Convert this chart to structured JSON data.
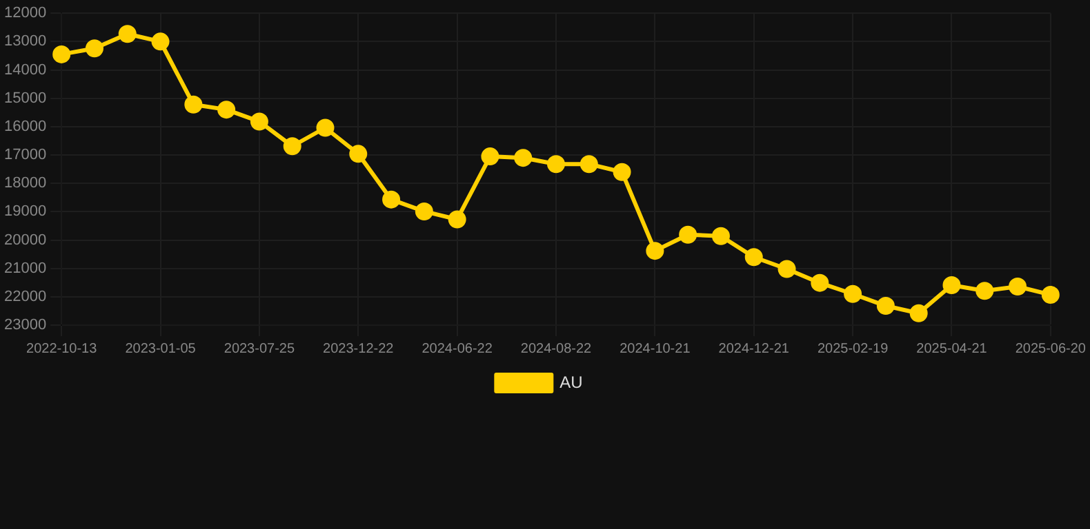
{
  "chart_data": {
    "type": "line",
    "categories": [
      "2022-10-13",
      null,
      null,
      "2023-01-05",
      null,
      null,
      "2023-07-25",
      null,
      null,
      "2023-12-22",
      null,
      null,
      "2024-06-22",
      null,
      null,
      "2024-08-22",
      null,
      null,
      "2024-10-21",
      null,
      null,
      "2024-12-21",
      null,
      null,
      "2025-02-19",
      null,
      null,
      "2025-04-21",
      null,
      null,
      "2025-06-20"
    ],
    "series": [
      {
        "name": "AU",
        "color": "#ffd000",
        "values": [
          13450,
          13240,
          12730,
          13000,
          15220,
          15400,
          15820,
          16690,
          16040,
          16960,
          18570,
          18990,
          19270,
          17050,
          17100,
          17320,
          17320,
          17600,
          20380,
          19810,
          19860,
          20600,
          21020,
          21510,
          21900,
          22320,
          22580,
          21590,
          21790,
          21640,
          21930
        ]
      }
    ],
    "ylim": [
      23000,
      12000
    ],
    "yticks": [
      12000,
      13000,
      14000,
      15000,
      16000,
      17000,
      18000,
      19000,
      20000,
      21000,
      22000,
      23000
    ],
    "grid": true,
    "legend": "bottom",
    "marker": "circle",
    "line_style": "solid"
  }
}
